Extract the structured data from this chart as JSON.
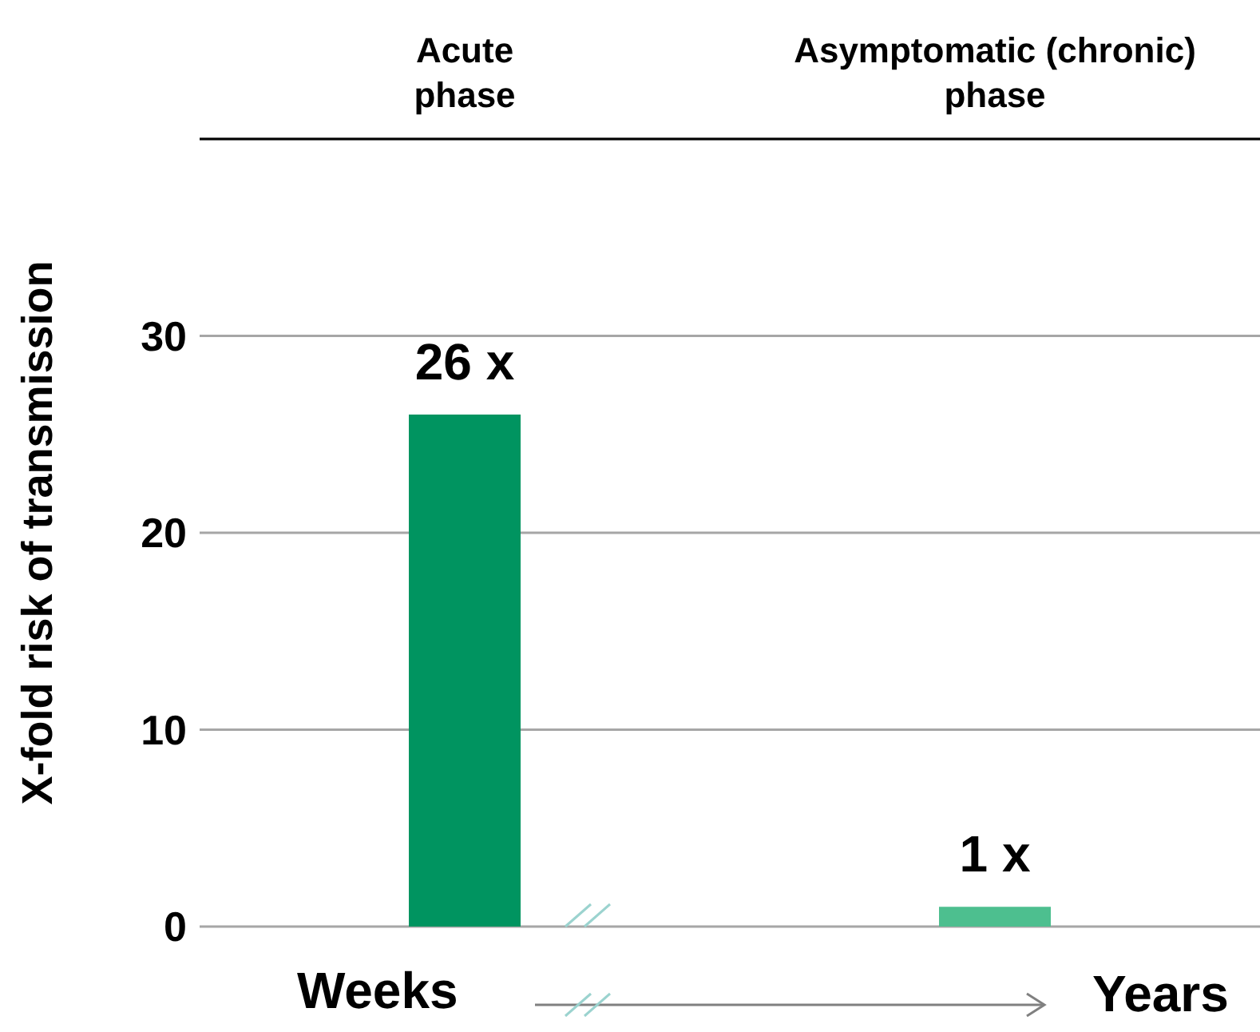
{
  "chart_data": {
    "type": "bar",
    "categories": [
      "Acute phase",
      "Asymptomatic (chronic) phase"
    ],
    "values": [
      26,
      1
    ],
    "colors": [
      "#009460",
      "#4dbf8f"
    ],
    "value_labels": [
      "26 x",
      "1 x"
    ],
    "ylabel": "X-fold risk of transmission",
    "ylim": [
      0,
      40
    ],
    "yticks": [
      0,
      10,
      20,
      30
    ],
    "grid": "y",
    "annotations": [
      "Weeks",
      "Years"
    ]
  }
}
